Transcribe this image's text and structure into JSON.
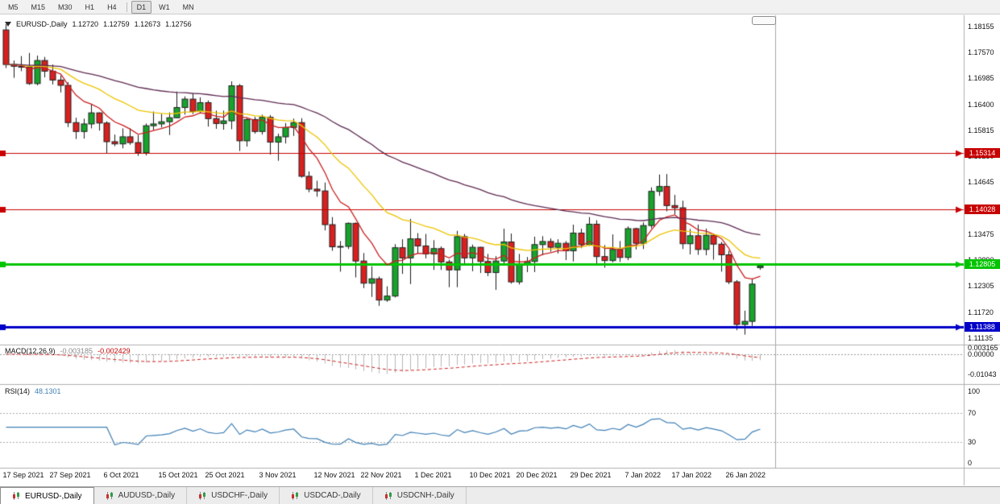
{
  "toolbar": {
    "periods": [
      {
        "label": "M5"
      },
      {
        "label": "M15"
      },
      {
        "label": "M30"
      },
      {
        "label": "H1"
      },
      {
        "label": "H4"
      },
      {
        "divider": true
      },
      {
        "label": "D1",
        "active": true
      },
      {
        "label": "W1"
      },
      {
        "label": "MN"
      }
    ]
  },
  "quote_header": {
    "symbol": "EURUSD-,Daily",
    "open": "1.12720",
    "high": "1.12759",
    "low": "1.12673",
    "close": "1.12756"
  },
  "chart_data": {
    "type": "candlestick",
    "symbol": "EURUSD",
    "timeframe": "Daily",
    "up_color": "#17a32b",
    "down_color": "#d91f1f",
    "wick_color": "#1a1a1a",
    "y_axis": {
      "ticks": [
        "1.18155",
        "1.17570",
        "1.16985",
        "1.16400",
        "1.15815",
        "1.15230",
        "1.14645",
        "1.14060",
        "1.13475",
        "1.12890",
        "1.12305",
        "1.11720",
        "1.11135"
      ]
    },
    "price_lines": [
      {
        "price": 1.15314,
        "label": "1.15314",
        "color": "#c80000",
        "width": 1
      },
      {
        "price": 1.14028,
        "label": "1.14028",
        "color": "#c80000",
        "width": 1
      },
      {
        "price": 1.12805,
        "label": "1.12805",
        "color": "#00c400",
        "width": 3
      },
      {
        "price": 1.11388,
        "label": "1.11388",
        "color": "#0000c8",
        "width": 3
      }
    ],
    "moving_averages": [
      {
        "period": 8,
        "color": "#cc2020"
      },
      {
        "period": 21,
        "color": "#edc500"
      },
      {
        "period": 55,
        "color": "#5e2a52"
      }
    ],
    "x_labels": [
      {
        "i": 0,
        "t": "17 Sep 2021"
      },
      {
        "i": 6,
        "t": "27 Sep 2021"
      },
      {
        "i": 13,
        "t": "6 Oct 2021"
      },
      {
        "i": 20,
        "t": "15 Oct 2021"
      },
      {
        "i": 26,
        "t": "25 Oct 2021"
      },
      {
        "i": 33,
        "t": "3 Nov 2021"
      },
      {
        "i": 40,
        "t": "12 Nov 2021"
      },
      {
        "i": 46,
        "t": "22 Nov 2021"
      },
      {
        "i": 53,
        "t": "1 Dec 2021"
      },
      {
        "i": 60,
        "t": "10 Dec 2021"
      },
      {
        "i": 66,
        "t": "20 Dec 2021"
      },
      {
        "i": 73,
        "t": "29 Dec 2021"
      },
      {
        "i": 80,
        "t": "7 Jan 2022"
      },
      {
        "i": 86,
        "t": "17 Jan 2022"
      },
      {
        "i": 93,
        "t": "26 Jan 2022"
      }
    ],
    "candles": [
      [
        1.1808,
        1.1821,
        1.1722,
        1.173
      ],
      [
        1.173,
        1.1739,
        1.17,
        1.1726
      ],
      [
        1.1726,
        1.1749,
        1.1715,
        1.1724
      ],
      [
        1.1724,
        1.1756,
        1.1684,
        1.1687
      ],
      [
        1.1687,
        1.175,
        1.1683,
        1.1739
      ],
      [
        1.1739,
        1.1747,
        1.1701,
        1.1715
      ],
      [
        1.1715,
        1.173,
        1.1685,
        1.1695
      ],
      [
        1.1695,
        1.1705,
        1.1667,
        1.1683
      ],
      [
        1.1683,
        1.169,
        1.1589,
        1.1599
      ],
      [
        1.1599,
        1.161,
        1.1562,
        1.1579
      ],
      [
        1.1579,
        1.1608,
        1.1563,
        1.1596
      ],
      [
        1.1596,
        1.164,
        1.1586,
        1.1621
      ],
      [
        1.1621,
        1.1622,
        1.1581,
        1.1598
      ],
      [
        1.1598,
        1.1602,
        1.1529,
        1.1556
      ],
      [
        1.1556,
        1.1572,
        1.1546,
        1.1551
      ],
      [
        1.1551,
        1.1586,
        1.1541,
        1.1567
      ],
      [
        1.1567,
        1.1586,
        1.1549,
        1.1554
      ],
      [
        1.1554,
        1.1571,
        1.1524,
        1.1531
      ],
      [
        1.1531,
        1.1597,
        1.1525,
        1.1592
      ],
      [
        1.1592,
        1.1624,
        1.1582,
        1.1596
      ],
      [
        1.1596,
        1.1619,
        1.1588,
        1.1601
      ],
      [
        1.1601,
        1.1622,
        1.1571,
        1.161
      ],
      [
        1.161,
        1.1669,
        1.1609,
        1.1633
      ],
      [
        1.1633,
        1.1658,
        1.1617,
        1.1652
      ],
      [
        1.1652,
        1.1665,
        1.1618,
        1.1624
      ],
      [
        1.1624,
        1.1656,
        1.1621,
        1.1644
      ],
      [
        1.1644,
        1.1649,
        1.159,
        1.1608
      ],
      [
        1.1608,
        1.1626,
        1.1585,
        1.1597
      ],
      [
        1.1597,
        1.1626,
        1.1583,
        1.1603
      ],
      [
        1.1603,
        1.1692,
        1.1584,
        1.1682
      ],
      [
        1.1682,
        1.1686,
        1.1535,
        1.1558
      ],
      [
        1.1558,
        1.1609,
        1.1545,
        1.1606
      ],
      [
        1.1606,
        1.1612,
        1.1574,
        1.1579
      ],
      [
        1.1579,
        1.1617,
        1.1572,
        1.1611
      ],
      [
        1.1611,
        1.1616,
        1.1527,
        1.1555
      ],
      [
        1.1555,
        1.1574,
        1.1513,
        1.1567
      ],
      [
        1.1567,
        1.1598,
        1.1552,
        1.1588
      ],
      [
        1.1588,
        1.1608,
        1.1569,
        1.1599
      ],
      [
        1.1599,
        1.1609,
        1.1475,
        1.1478
      ],
      [
        1.1478,
        1.1489,
        1.1442,
        1.1449
      ],
      [
        1.1449,
        1.1468,
        1.1432,
        1.1445
      ],
      [
        1.1445,
        1.1464,
        1.1356,
        1.1369
      ],
      [
        1.1369,
        1.1386,
        1.131,
        1.1319
      ],
      [
        1.1319,
        1.1332,
        1.1263,
        1.132
      ],
      [
        1.132,
        1.1374,
        1.1314,
        1.1372
      ],
      [
        1.1372,
        1.1374,
        1.125,
        1.1287
      ],
      [
        1.1287,
        1.1305,
        1.1226,
        1.1237
      ],
      [
        1.1237,
        1.1275,
        1.1206,
        1.1247
      ],
      [
        1.1247,
        1.1252,
        1.1186,
        1.1199
      ],
      [
        1.1199,
        1.123,
        1.1195,
        1.1208
      ],
      [
        1.1208,
        1.1325,
        1.1205,
        1.1317
      ],
      [
        1.1317,
        1.1336,
        1.1258,
        1.1294
      ],
      [
        1.1294,
        1.1382,
        1.1235,
        1.1337
      ],
      [
        1.1337,
        1.135,
        1.1305,
        1.1321
      ],
      [
        1.1321,
        1.1348,
        1.1293,
        1.1303
      ],
      [
        1.1303,
        1.1334,
        1.1267,
        1.1315
      ],
      [
        1.1315,
        1.132,
        1.1267,
        1.1285
      ],
      [
        1.1285,
        1.129,
        1.1228,
        1.1267
      ],
      [
        1.1267,
        1.1355,
        1.1228,
        1.1342
      ],
      [
        1.1342,
        1.1348,
        1.128,
        1.1294
      ],
      [
        1.1294,
        1.1324,
        1.1264,
        1.1318
      ],
      [
        1.1318,
        1.1319,
        1.126,
        1.1286
      ],
      [
        1.1286,
        1.1303,
        1.1253,
        1.1261
      ],
      [
        1.1261,
        1.1298,
        1.1222,
        1.1287
      ],
      [
        1.1287,
        1.136,
        1.128,
        1.133
      ],
      [
        1.133,
        1.1349,
        1.1236,
        1.124
      ],
      [
        1.124,
        1.1303,
        1.1234,
        1.128
      ],
      [
        1.128,
        1.1296,
        1.1262,
        1.1286
      ],
      [
        1.1286,
        1.1342,
        1.1262,
        1.1324
      ],
      [
        1.1324,
        1.1343,
        1.13,
        1.1331
      ],
      [
        1.1331,
        1.1338,
        1.1308,
        1.1318
      ],
      [
        1.1318,
        1.1336,
        1.1304,
        1.1327
      ],
      [
        1.1327,
        1.1332,
        1.1289,
        1.131
      ],
      [
        1.131,
        1.1369,
        1.1286,
        1.135
      ],
      [
        1.135,
        1.136,
        1.1316,
        1.1324
      ],
      [
        1.1324,
        1.1386,
        1.1321,
        1.137
      ],
      [
        1.137,
        1.1379,
        1.1279,
        1.1297
      ],
      [
        1.1297,
        1.1323,
        1.1272,
        1.1288
      ],
      [
        1.1288,
        1.1347,
        1.1284,
        1.1313
      ],
      [
        1.1313,
        1.1332,
        1.1285,
        1.1295
      ],
      [
        1.1295,
        1.1365,
        1.1289,
        1.136
      ],
      [
        1.136,
        1.1362,
        1.1313,
        1.1327
      ],
      [
        1.1327,
        1.1374,
        1.1314,
        1.1367
      ],
      [
        1.1367,
        1.1453,
        1.1361,
        1.1444
      ],
      [
        1.1444,
        1.1482,
        1.1434,
        1.1455
      ],
      [
        1.1455,
        1.1483,
        1.1399,
        1.1412
      ],
      [
        1.1412,
        1.1436,
        1.1392,
        1.1407
      ],
      [
        1.1407,
        1.1423,
        1.1314,
        1.1326
      ],
      [
        1.1326,
        1.1359,
        1.1302,
        1.1344
      ],
      [
        1.1344,
        1.1369,
        1.1301,
        1.1313
      ],
      [
        1.1313,
        1.136,
        1.13,
        1.1345
      ],
      [
        1.1345,
        1.1349,
        1.129,
        1.1325
      ],
      [
        1.1325,
        1.133,
        1.1263,
        1.1301
      ],
      [
        1.1301,
        1.131,
        1.1235,
        1.124
      ],
      [
        1.124,
        1.1244,
        1.1131,
        1.1144
      ],
      [
        1.1144,
        1.1175,
        1.1121,
        1.1151
      ],
      [
        1.1151,
        1.1248,
        1.1141,
        1.1235
      ],
      [
        1.1272,
        1.12759,
        1.12673,
        1.12756
      ]
    ],
    "indicators": {
      "macd": {
        "label": "MACD(12,26,9)",
        "fast": 12,
        "slow": 26,
        "signal": 9,
        "value": "-0.003185",
        "signal_value": "-0.002429",
        "histogram_color": "#b8b8b8",
        "signal_color": "#d02020",
        "axis_ticks": [
          {
            "v": 0.003165,
            "label": "0.003165"
          },
          {
            "v": 0,
            "label": "0.00000"
          },
          {
            "v": -0.01043,
            "label": "-0.01043"
          }
        ]
      },
      "rsi": {
        "label": "RSI(14)",
        "period": 14,
        "value": "48.1301",
        "color": "#3f7fb5",
        "levels": [
          70,
          30
        ],
        "axis_ticks": [
          100,
          70,
          30,
          0
        ]
      }
    }
  },
  "tabs": [
    {
      "label": "EURUSD-,Daily",
      "active": true
    },
    {
      "label": "AUDUSD-,Daily",
      "active": false
    },
    {
      "label": "USDCHF-,Daily",
      "active": false
    },
    {
      "label": "USDCAD-,Daily",
      "active": false
    },
    {
      "label": "USDCNH-,Daily",
      "active": false
    }
  ]
}
